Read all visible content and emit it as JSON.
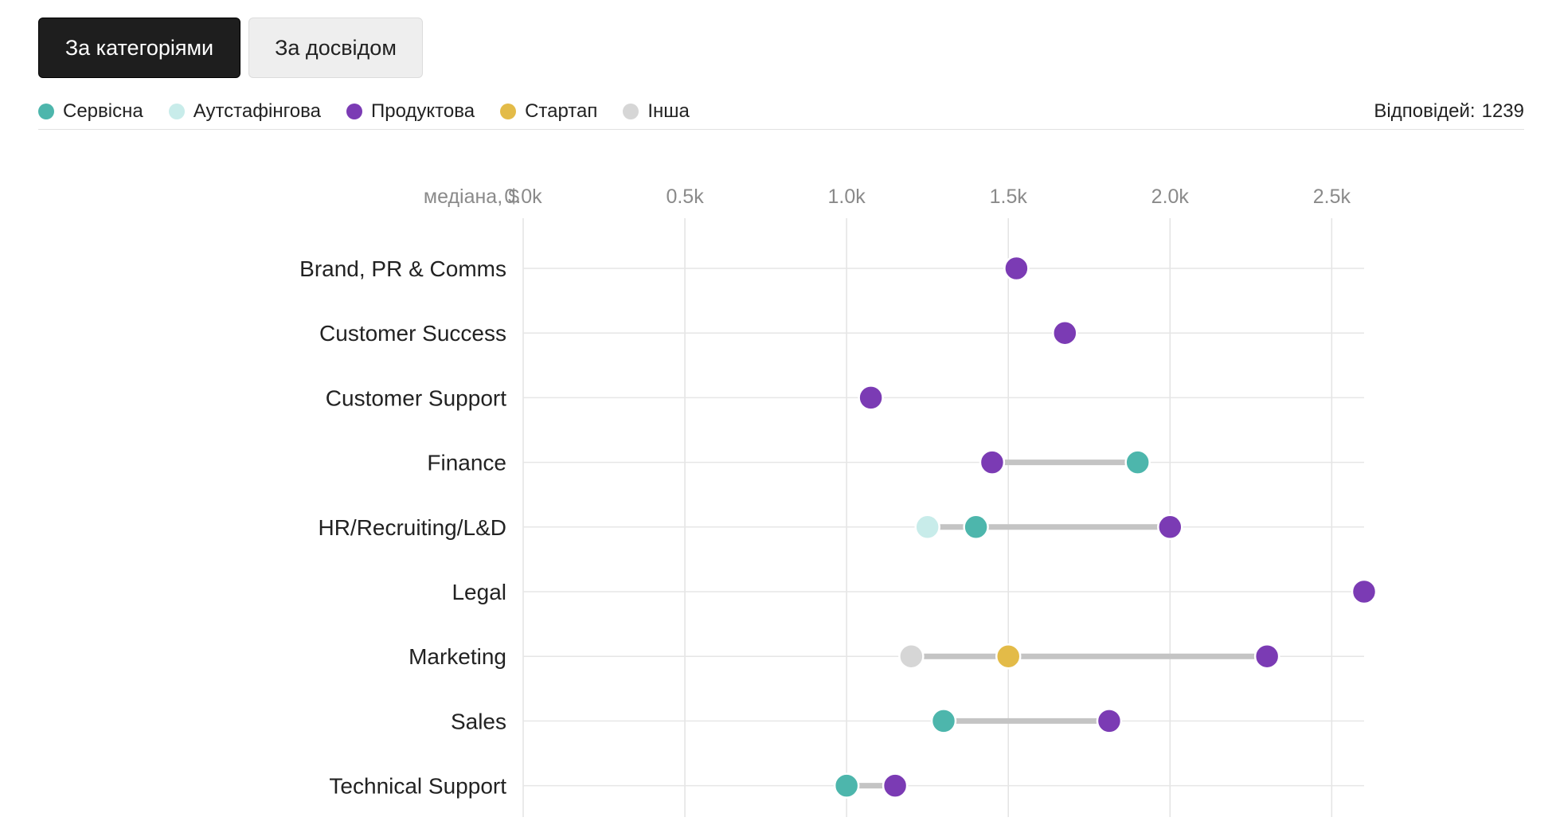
{
  "tabs": [
    {
      "label": "За категоріями",
      "active": true
    },
    {
      "label": "За досвідом",
      "active": false
    }
  ],
  "legend": [
    {
      "name": "Сервісна",
      "color": "#4db6ac"
    },
    {
      "name": "Аутстафінгова",
      "color": "#c8ecea"
    },
    {
      "name": "Продуктова",
      "color": "#7b3bb4"
    },
    {
      "name": "Стартап",
      "color": "#e3bb48"
    },
    {
      "name": "Інша",
      "color": "#d6d6d6"
    }
  ],
  "responses": {
    "label": "Відповідей:",
    "count": "1239"
  },
  "chart_data": {
    "type": "dot-range",
    "axis_label": "медіана, $",
    "xlim": [
      0,
      2600
    ],
    "ticks": [
      0,
      500,
      1000,
      1500,
      2000,
      2500
    ],
    "tick_labels": [
      "0.0k",
      "0.5k",
      "1.0k",
      "1.5k",
      "2.0k",
      "2.5k"
    ],
    "grid": true,
    "categories": [
      {
        "name": "Brand, PR & Comms",
        "points": [
          {
            "series": "Продуктова",
            "value": 1525
          }
        ]
      },
      {
        "name": "Customer Success",
        "points": [
          {
            "series": "Продуктова",
            "value": 1675
          }
        ]
      },
      {
        "name": "Customer Support",
        "points": [
          {
            "series": "Продуктова",
            "value": 1075
          }
        ]
      },
      {
        "name": "Finance",
        "points": [
          {
            "series": "Продуктова",
            "value": 1450
          },
          {
            "series": "Сервісна",
            "value": 1900
          }
        ]
      },
      {
        "name": "HR/Recruiting/L&D",
        "points": [
          {
            "series": "Аутстафінгова",
            "value": 1250
          },
          {
            "series": "Сервісна",
            "value": 1400
          },
          {
            "series": "Продуктова",
            "value": 2000
          }
        ]
      },
      {
        "name": "Legal",
        "points": [
          {
            "series": "Продуктова",
            "value": 2600
          }
        ]
      },
      {
        "name": "Marketing",
        "points": [
          {
            "series": "Інша",
            "value": 1200
          },
          {
            "series": "Стартап",
            "value": 1500
          },
          {
            "series": "Продуктова",
            "value": 2300
          }
        ]
      },
      {
        "name": "Sales",
        "points": [
          {
            "series": "Сервісна",
            "value": 1300
          },
          {
            "series": "Продуктова",
            "value": 1812
          }
        ]
      },
      {
        "name": "Technical Support",
        "points": [
          {
            "series": "Сервісна",
            "value": 1000
          },
          {
            "series": "Продуктова",
            "value": 1150
          }
        ]
      }
    ]
  }
}
